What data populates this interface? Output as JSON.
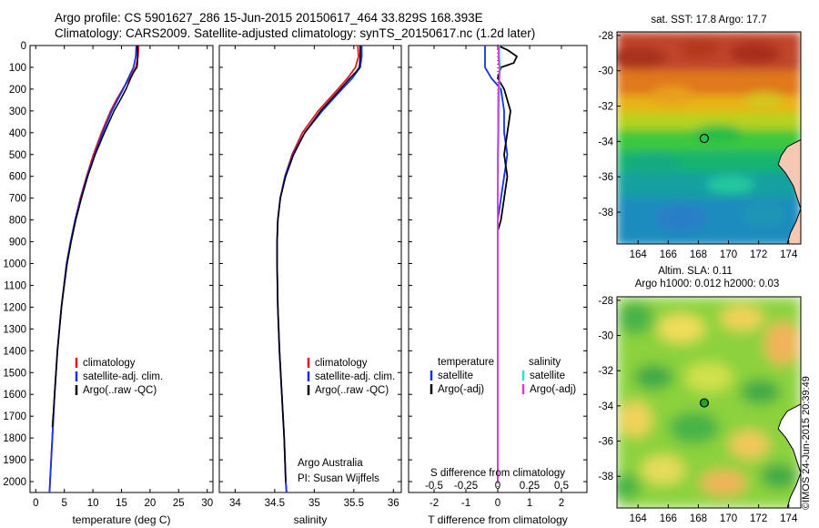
{
  "header": {
    "line1": "Argo profile: CS 5901627_286 15-Jun-2015 20150617_464 33.829S 168.393E",
    "line2": "Climatology: CARS2009. Satellite-adjusted climatology: synTS_20150617.nc (1.2d later)"
  },
  "stamp": "©IMOS 24-Jun-2015 20:39:49",
  "colors": {
    "clim": "#e8141e",
    "sat": "#1432e6",
    "argo": "#000000",
    "cyan": "#21e1e1",
    "magenta": "#e632dc"
  },
  "depth_axis": {
    "ylim": [
      0,
      2050
    ],
    "ticks": [
      0,
      100,
      200,
      300,
      400,
      500,
      600,
      700,
      800,
      900,
      1000,
      1100,
      1200,
      1300,
      1400,
      1500,
      1600,
      1700,
      1800,
      1900,
      2000
    ]
  },
  "chart_data": [
    {
      "type": "line",
      "id": "temperature",
      "xlabel": "temperature (deg C)",
      "xlim": [
        -1,
        31
      ],
      "xticks": [
        0,
        5,
        10,
        15,
        20,
        25,
        30
      ],
      "legend": [
        "climatology",
        "satellite-adj. clim.",
        "Argo(..raw -QC)"
      ],
      "series": [
        {
          "name": "climatology",
          "depth": [
            0,
            50,
            100,
            150,
            200,
            250,
            300,
            400,
            500,
            600,
            700,
            800,
            900,
            1000,
            1200,
            1400,
            1600,
            1800,
            2000,
            2050
          ],
          "values": [
            18.0,
            17.9,
            17.5,
            16.4,
            15.2,
            14.1,
            13.1,
            11.5,
            10.1,
            8.9,
            7.8,
            6.9,
            6.1,
            5.4,
            4.5,
            3.8,
            3.3,
            2.9,
            2.5,
            2.4
          ]
        },
        {
          "name": "satellite-adj. clim.",
          "depth": [
            0,
            50,
            100,
            150,
            200,
            250,
            300,
            400,
            500,
            600,
            700,
            800,
            900,
            1000,
            1200,
            1400,
            1600,
            1800,
            2000,
            2050
          ],
          "values": [
            17.6,
            17.5,
            17.1,
            16.2,
            15.3,
            14.3,
            13.3,
            11.7,
            10.3,
            9.0,
            7.9,
            6.9,
            6.1,
            5.4,
            4.5,
            3.8,
            3.3,
            2.9,
            2.5,
            2.4
          ]
        },
        {
          "name": "Argo(..raw -QC)",
          "depth": [
            0,
            20,
            50,
            80,
            100,
            120,
            150,
            200,
            250,
            300,
            400,
            500,
            600,
            700,
            800,
            900,
            1000,
            1200,
            1400,
            1600,
            1750
          ],
          "values": [
            17.8,
            17.8,
            17.8,
            17.8,
            17.7,
            17.2,
            16.6,
            15.8,
            14.8,
            13.7,
            12.0,
            10.4,
            9.1,
            8.0,
            7.0,
            6.2,
            5.5,
            4.5,
            3.8,
            3.3,
            2.9
          ]
        }
      ]
    },
    {
      "type": "line",
      "id": "salinity",
      "xlabel": "salinity",
      "xlim": [
        33.8,
        36.1
      ],
      "xticks": [
        34,
        34.5,
        35,
        35.5,
        36
      ],
      "legend": [
        "climatology",
        "satellite-adj. clim.",
        "Argo(..raw -QC)"
      ],
      "annotation": [
        "Argo Australia",
        "PI: Susan Wijffels"
      ],
      "series": [
        {
          "name": "climatology",
          "depth": [
            0,
            50,
            100,
            150,
            200,
            300,
            400,
            500,
            600,
            700,
            800,
            900,
            1000,
            1200,
            1400,
            1600,
            1800,
            2000,
            2050
          ],
          "values": [
            35.55,
            35.56,
            35.52,
            35.42,
            35.3,
            35.05,
            34.85,
            34.72,
            34.63,
            34.57,
            34.54,
            34.53,
            34.53,
            34.54,
            34.56,
            34.59,
            34.62,
            34.64,
            34.65
          ]
        },
        {
          "name": "satellite-adj. clim.",
          "depth": [
            0,
            50,
            100,
            150,
            200,
            300,
            400,
            500,
            600,
            700,
            800,
            900,
            1000,
            1200,
            1400,
            1600,
            1800,
            2000,
            2050
          ],
          "values": [
            35.6,
            35.6,
            35.58,
            35.48,
            35.35,
            35.1,
            34.88,
            34.73,
            34.63,
            34.57,
            34.54,
            34.53,
            34.53,
            34.54,
            34.56,
            34.59,
            34.62,
            34.64,
            34.65
          ]
        },
        {
          "name": "Argo(..raw -QC)",
          "depth": [
            0,
            50,
            100,
            120,
            150,
            200,
            300,
            400,
            500,
            600,
            700,
            800,
            900,
            1000,
            1200,
            1400,
            1600,
            1800,
            2000
          ],
          "values": [
            35.58,
            35.58,
            35.57,
            35.53,
            35.45,
            35.33,
            35.08,
            34.88,
            34.74,
            34.64,
            34.57,
            34.54,
            34.53,
            34.53,
            34.54,
            34.56,
            34.59,
            34.62,
            34.64
          ]
        }
      ]
    },
    {
      "type": "line",
      "id": "difference",
      "xlabel": "T difference from climatology",
      "xlabel2": "S difference from climatology",
      "xlim": [
        -2.8,
        2.8
      ],
      "xticks": [
        -2,
        -1,
        0,
        1,
        2
      ],
      "xticks_labels": [
        "-2",
        "-1",
        "0",
        "1",
        "2"
      ],
      "xticks2": [
        -2,
        -1,
        0,
        1,
        2
      ],
      "xticks2_labels": [
        "-0.5",
        "-0.25",
        "0",
        "0.25",
        "0.5"
      ],
      "legend_temperature": {
        "title": "temperature",
        "items": [
          "satellite",
          "Argo(-adj)"
        ]
      },
      "legend_salinity": {
        "title": "salinity",
        "items": [
          "satellite",
          "Argo(-adj)"
        ]
      },
      "series": [
        {
          "name": "T satellite",
          "depth": [
            0,
            50,
            100,
            150,
            200,
            300,
            400,
            500,
            600,
            700,
            800,
            850,
            900,
            1000,
            1200,
            1400,
            1600,
            1800,
            2000
          ],
          "values": [
            -0.4,
            -0.4,
            -0.4,
            -0.2,
            0.1,
            0.2,
            0.2,
            0.3,
            0.2,
            0.1,
            0.0,
            0.0,
            0.0,
            0.0,
            0.0,
            0.0,
            0.0,
            0.0,
            0.0
          ]
        },
        {
          "name": "T Argo(-adj)",
          "depth": [
            0,
            20,
            50,
            80,
            100,
            150,
            200,
            300,
            400,
            500,
            600,
            700,
            800,
            850,
            900,
            1000,
            1200,
            1400,
            1600,
            1800,
            2000
          ],
          "values": [
            0.0,
            0.3,
            0.6,
            0.5,
            0.1,
            0.0,
            0.2,
            0.4,
            0.3,
            0.2,
            0.3,
            0.2,
            0.1,
            0.0,
            0.0,
            0.0,
            0.0,
            0.0,
            0.0,
            0.0,
            0.0
          ]
        },
        {
          "name": "S satellite",
          "depth": [
            0,
            50,
            100,
            150,
            200,
            300,
            400,
            500,
            600,
            700,
            800,
            900,
            1000,
            1200,
            1400,
            1600,
            1800,
            2000
          ],
          "values": [
            0.05,
            0.05,
            0.07,
            0.05,
            0.05,
            0.04,
            0.03,
            0.02,
            0.01,
            0.0,
            0.0,
            0.0,
            0.0,
            0.0,
            0.0,
            0.0,
            0.0,
            0.0
          ]
        },
        {
          "name": "S Argo(-adj)",
          "depth": [
            0,
            50,
            100,
            150,
            200,
            300,
            400,
            500,
            600,
            700,
            800,
            900,
            1000,
            1200,
            1400,
            1600,
            1800,
            2000
          ],
          "values": [
            0.03,
            0.02,
            0.05,
            0.05,
            0.02,
            0.01,
            0.01,
            0.0,
            0.0,
            0.0,
            0.0,
            0.0,
            0.0,
            0.0,
            0.0,
            0.0,
            0.0,
            0.0
          ]
        }
      ]
    },
    {
      "type": "heatmap",
      "id": "sst_map",
      "title": "sat. SST: 17.8  Argo: 17.7",
      "xticks": [
        164,
        166,
        168,
        170,
        172,
        174
      ],
      "yticks": [
        -28,
        -30,
        -32,
        -34,
        -36,
        -38
      ],
      "float_position": {
        "lon": 168.393,
        "lat": -33.829
      }
    },
    {
      "type": "heatmap",
      "id": "sla_map",
      "title_line1": "Altim. SLA: 0.11",
      "title_line2": "Argo h1000: 0.012  h2000: 0.03",
      "xticks": [
        164,
        166,
        168,
        170,
        172,
        174
      ],
      "yticks": [
        -28,
        -30,
        -32,
        -34,
        -36,
        -38
      ],
      "float_position": {
        "lon": 168.393,
        "lat": -33.829
      }
    }
  ]
}
